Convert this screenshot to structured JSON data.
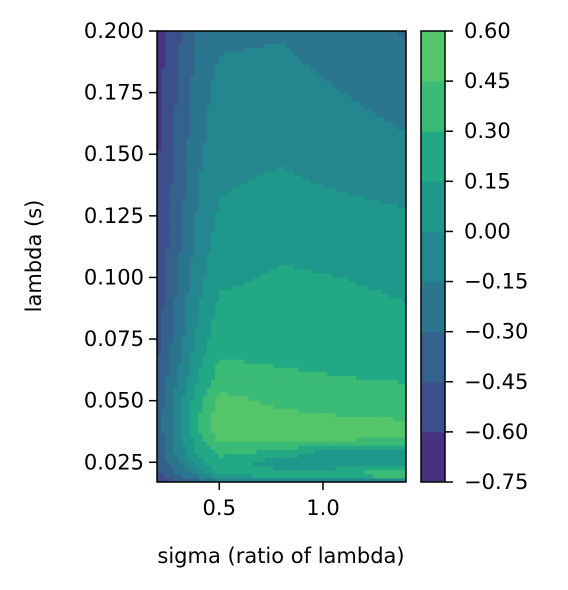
{
  "chart_data": {
    "type": "contourf",
    "title": "",
    "xlabel": "sigma (ratio of lambda)",
    "ylabel": "lambda (s)",
    "xlim": [
      0.2,
      1.4
    ],
    "ylim": [
      0.017,
      0.2
    ],
    "xticks": [
      0.5,
      1.0
    ],
    "xtick_labels": [
      "0.5",
      "1.0"
    ],
    "yticks": [
      0.025,
      0.05,
      0.075,
      0.1,
      0.125,
      0.15,
      0.175,
      0.2
    ],
    "ytick_labels": [
      "0.025",
      "0.050",
      "0.075",
      "0.100",
      "0.125",
      "0.150",
      "0.175",
      "0.200"
    ],
    "colormap": "viridis",
    "levels": [
      -0.75,
      -0.6,
      -0.45,
      -0.3,
      -0.15,
      0.0,
      0.15,
      0.3,
      0.45,
      0.6
    ],
    "colorbar_ticks": [
      -0.75,
      -0.6,
      -0.45,
      -0.3,
      -0.15,
      0.0,
      0.15,
      0.3,
      0.45,
      0.6
    ],
    "colorbar_labels": [
      "−0.75",
      "−0.60",
      "−0.45",
      "−0.30",
      "−0.15",
      "0.00",
      "0.15",
      "0.30",
      "0.45",
      "0.60"
    ],
    "level_colors": [
      "#472d7b",
      "#3b528b",
      "#2c728e",
      "#21918c",
      "#28ae80",
      "#5ec962",
      "#addc30",
      "#46337e",
      "#365c8d",
      "#277f8e",
      "#1fa187",
      "#4ac16d",
      "#a0da39"
    ],
    "band_colors": [
      "#46327e",
      "#3c4f8a",
      "#33638d",
      "#2b758e",
      "#24868e",
      "#1f988b",
      "#22a884",
      "#3bbb75",
      "#54c568",
      "#6ccd5a"
    ],
    "x_grid": [
      0.2,
      0.4,
      0.5,
      0.8,
      1.1,
      1.4
    ],
    "y_grid": [
      0.017,
      0.02,
      0.025,
      0.03,
      0.035,
      0.04,
      0.05,
      0.06,
      0.075,
      0.1,
      0.125,
      0.15,
      0.175,
      0.2
    ],
    "z": [
      [
        -0.55,
        -0.4,
        -0.25,
        -0.2,
        -0.15,
        -0.2
      ],
      [
        -0.5,
        -0.1,
        0.2,
        0.25,
        0.35,
        0.45
      ],
      [
        -0.45,
        0.1,
        0.25,
        0.05,
        0.0,
        0.1
      ],
      [
        -0.4,
        0.2,
        0.35,
        0.3,
        0.05,
        0.1
      ],
      [
        -0.4,
        0.25,
        0.5,
        0.5,
        0.5,
        0.48
      ],
      [
        -0.4,
        0.3,
        0.55,
        0.52,
        0.5,
        0.48
      ],
      [
        -0.4,
        0.25,
        0.5,
        0.42,
        0.38,
        0.36
      ],
      [
        -0.45,
        0.15,
        0.35,
        0.32,
        0.3,
        0.28
      ],
      [
        -0.5,
        0.05,
        0.25,
        0.24,
        0.22,
        0.2
      ],
      [
        -0.55,
        -0.05,
        0.12,
        0.17,
        0.15,
        0.12
      ],
      [
        -0.6,
        -0.12,
        0.02,
        0.08,
        0.05,
        0.02
      ],
      [
        -0.62,
        -0.18,
        -0.05,
        -0.02,
        -0.08,
        -0.12
      ],
      [
        -0.65,
        -0.22,
        -0.1,
        -0.1,
        -0.15,
        -0.2
      ],
      [
        -0.68,
        -0.28,
        -0.18,
        -0.16,
        -0.22,
        -0.32
      ]
    ]
  }
}
